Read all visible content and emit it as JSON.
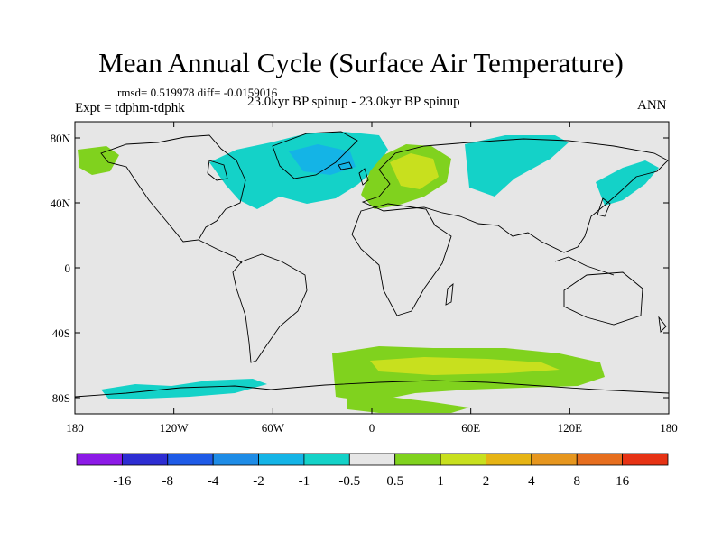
{
  "title": "Mean Annual Cycle (Surface Air Temperature)",
  "stats": "rmsd= 0.519978 diff= -0.0159016",
  "experiment": "Expt = tdphm-tdphk",
  "subtitle": "23.0kyr BP spinup - 23.0kyr BP spinup",
  "season": "ANN",
  "map_data": {
    "type": "contour-map",
    "projection": "cylindrical-equidistant",
    "lon_range": [
      -180,
      180
    ],
    "lat_range": [
      -90,
      90
    ],
    "lat_tick_labels": [
      "80N",
      "40N",
      "0",
      "40S",
      "80S"
    ],
    "lon_tick_labels": [
      "180",
      "120W",
      "60W",
      "0",
      "60E",
      "120E",
      "180"
    ],
    "regions": [
      {
        "name": "North Atlantic / Greenland cooling",
        "level": -1
      },
      {
        "name": "Greenland core",
        "level": -2
      },
      {
        "name": "Siberia cooling",
        "level": -1
      },
      {
        "name": "NE Asia cooling",
        "level": -1
      },
      {
        "name": "Europe warming",
        "level": 1
      },
      {
        "name": "Eastern Europe core",
        "level": 2
      },
      {
        "name": "Alaska warming",
        "level": 1
      },
      {
        "name": "Southern Ocean warming",
        "level": 1
      },
      {
        "name": "Southern Ocean core",
        "level": 2
      },
      {
        "name": "Antarctic Pacific sector cooling",
        "level": -1
      },
      {
        "name": "Weddell warming",
        "level": 1
      }
    ]
  },
  "colorbar": {
    "labels": [
      "-16",
      "-8",
      "-4",
      "-2",
      "-1",
      "-0.5",
      "0.5",
      "1",
      "2",
      "4",
      "8",
      "16"
    ],
    "colors": [
      "#8c1ae6",
      "#2d2dd2",
      "#1e5ae6",
      "#1e8ce6",
      "#14b4e6",
      "#14d2c8",
      "#e6e6e6",
      "#80d21e",
      "#c8e01e",
      "#e6b414",
      "#e6961e",
      "#e66e1e",
      "#e63214"
    ],
    "level_colors": {
      "-2": "#14b4e6",
      "-1": "#14d2c8",
      "1": "#80d21e",
      "2": "#c8e01e"
    }
  }
}
